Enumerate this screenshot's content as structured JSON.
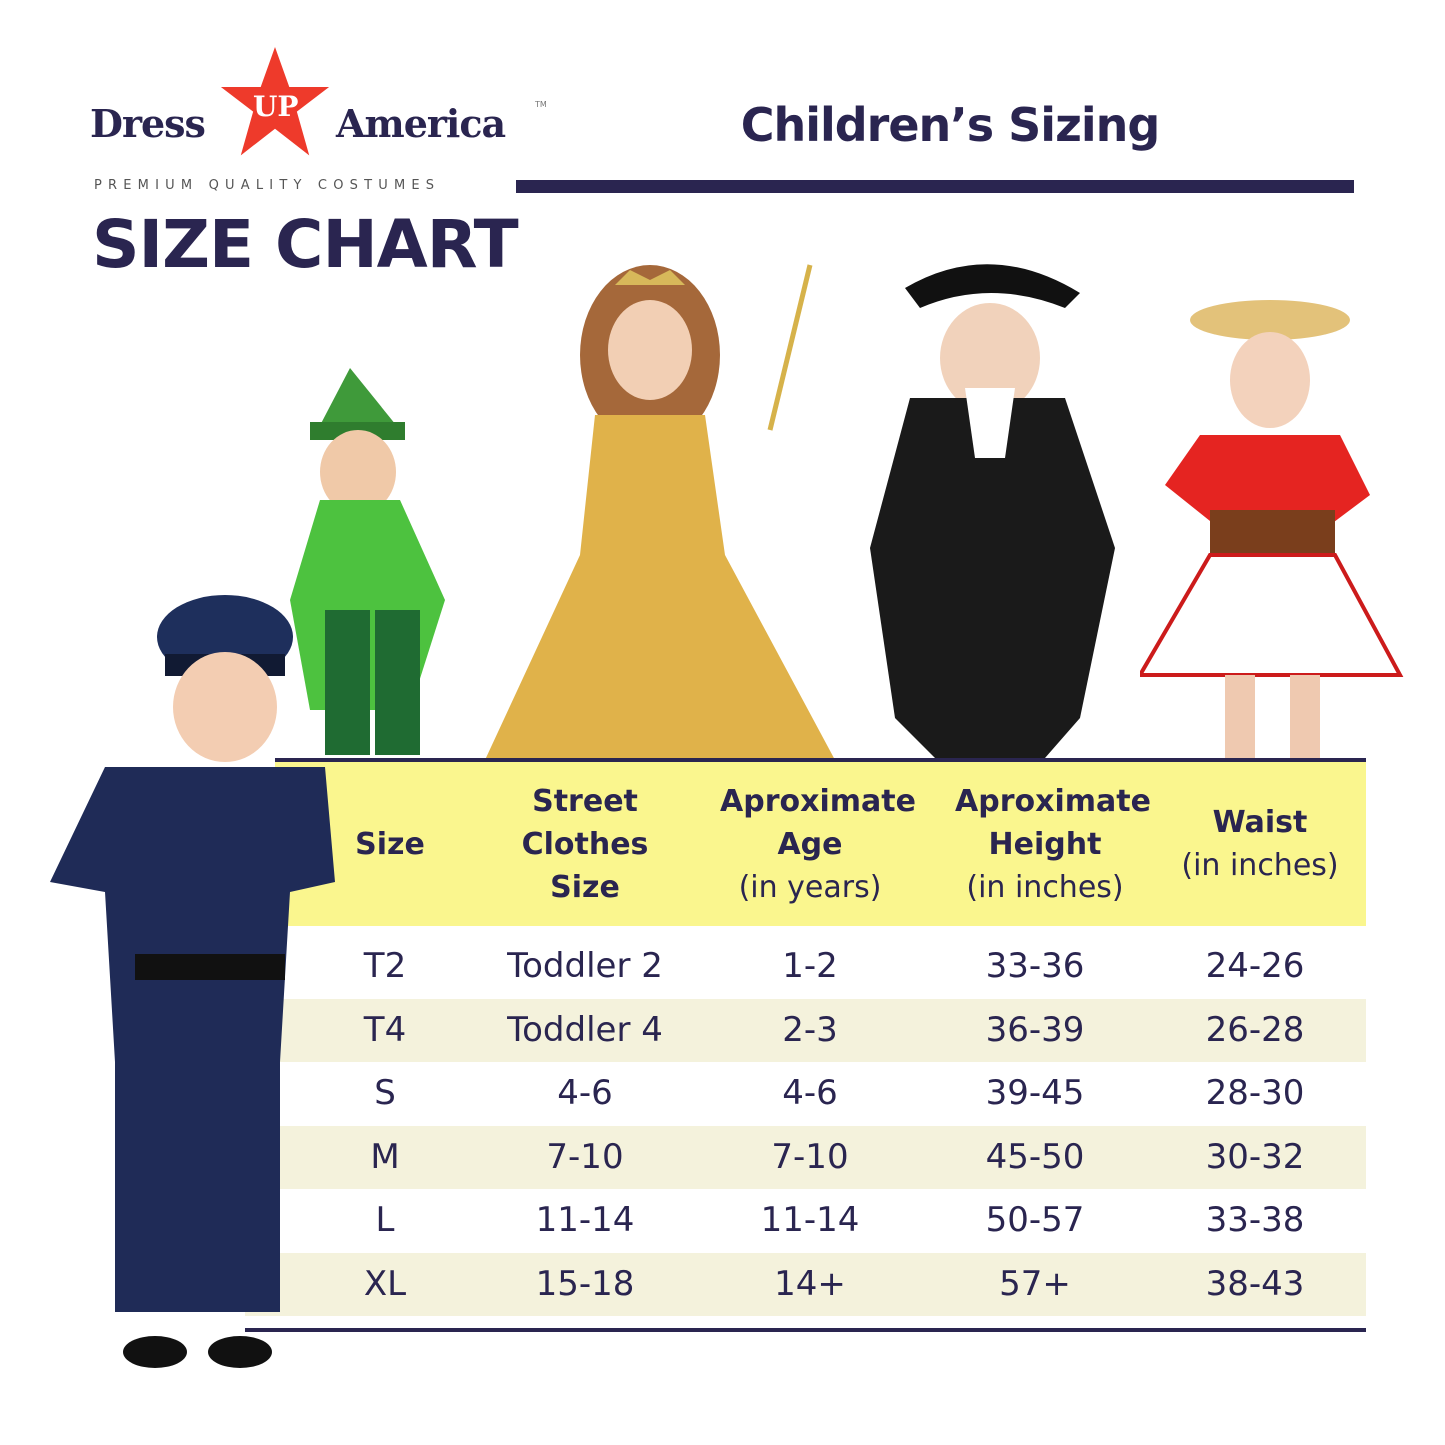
{
  "brand": {
    "logo_left": "Dress",
    "logo_star": "UP",
    "logo_right": "America",
    "trademark": "TM",
    "tagline": "PREMIUM QUALITY COSTUMES"
  },
  "heading": "SIZE CHART",
  "title": "Children’s Sizing",
  "colors": {
    "navy": "#2a2550",
    "header_yellow": "#faf68e",
    "alt_row": "#f4f2dc",
    "star_red": "#ee3a2b"
  },
  "table": {
    "headers": [
      {
        "main": "Size",
        "sub": ""
      },
      {
        "main": "Street Clothes Size",
        "sub": ""
      },
      {
        "main": "Aproximate Age",
        "sub": "(in years)"
      },
      {
        "main": "Aproximate Height",
        "sub": "(in inches)"
      },
      {
        "main": "Waist",
        "sub": "(in inches)"
      }
    ],
    "rows": [
      [
        "T2",
        "Toddler 2",
        "1-2",
        "33-36",
        "24-26"
      ],
      [
        "T4",
        "Toddler 4",
        "2-3",
        "36-39",
        "26-28"
      ],
      [
        "S",
        "4-6",
        "4-6",
        "39-45",
        "28-30"
      ],
      [
        "M",
        "7-10",
        "7-10",
        "45-50",
        "30-32"
      ],
      [
        "L",
        "11-14",
        "11-14",
        "50-57",
        "33-38"
      ],
      [
        "XL",
        "15-18",
        "14+",
        "57+",
        "38-43"
      ]
    ]
  },
  "images": [
    "police-officer-costume",
    "peter-pan-costume",
    "princess-gown-costume",
    "colonial-costume",
    "cowgirl-costume"
  ]
}
